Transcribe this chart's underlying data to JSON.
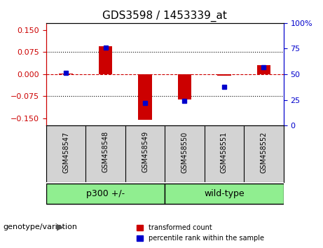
{
  "title": "GDS3598 / 1453339_at",
  "samples": [
    "GSM458547",
    "GSM458548",
    "GSM458549",
    "GSM458550",
    "GSM458551",
    "GSM458552"
  ],
  "red_values": [
    0.002,
    0.095,
    -0.155,
    -0.085,
    -0.005,
    0.03
  ],
  "blue_values_pct": [
    51,
    76,
    22,
    24,
    38,
    57
  ],
  "groups": [
    {
      "label": "p300 +/-",
      "indices": [
        0,
        1,
        2
      ],
      "color": "#90EE90"
    },
    {
      "label": "wild-type",
      "indices": [
        3,
        4,
        5
      ],
      "color": "#90EE90"
    }
  ],
  "group_label": "genotype/variation",
  "ylim_left": [
    -0.175,
    0.175
  ],
  "ylim_right": [
    0,
    100
  ],
  "yticks_left": [
    -0.15,
    -0.075,
    0,
    0.075,
    0.15
  ],
  "yticks_right": [
    0,
    25,
    50,
    75,
    100
  ],
  "hlines": [
    0.075,
    0,
    -0.075
  ],
  "zero_line_color": "#cc0000",
  "bar_color": "#cc0000",
  "dot_color": "#0000cc",
  "bg_color": "#ffffff",
  "plot_bg": "#ffffff",
  "legend_items": [
    "transformed count",
    "percentile rank within the sample"
  ]
}
